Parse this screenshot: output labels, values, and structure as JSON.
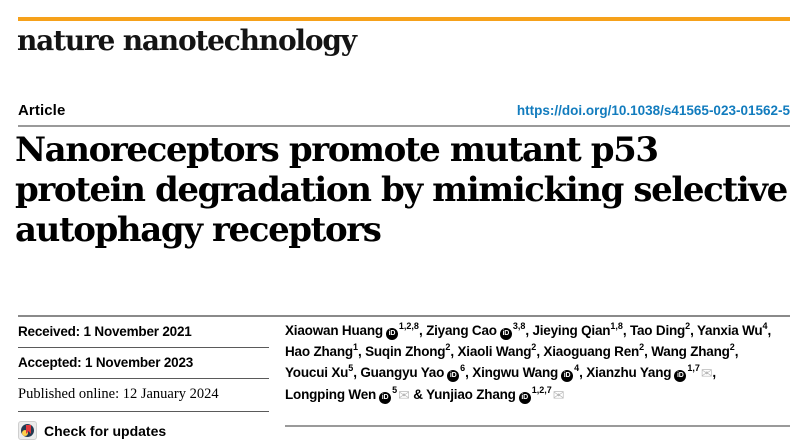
{
  "journal": {
    "name": "nature nanotechnology",
    "accent_color": "#F6A11A"
  },
  "article": {
    "label": "Article",
    "doi_url": "https://doi.org/10.1038/s41565-023-01562-5",
    "title_lines": [
      "Nanoreceptors promote mutant p53",
      "protein degradation by mimicking selective",
      "autophagy receptors"
    ]
  },
  "dates": {
    "received": "Received: 1 November 2021",
    "accepted": "Accepted: 1 November 2023",
    "published": "Published online: 12 January 2024"
  },
  "check_updates": {
    "label": "Check for updates",
    "icon": "crossmark-icon"
  },
  "colors": {
    "link_blue": "#127CBE",
    "orcid_black": "#000000",
    "envelope_gray": "#b9b9b9"
  },
  "icons": {
    "orcid_glyph": "iD",
    "envelope_glyph": "✉"
  },
  "authors": {
    "lines": [
      [
        {
          "name": "Xiaowan Huang",
          "orcid": true,
          "sup": "1,2,8",
          "envelope": false,
          "sep": ", "
        },
        {
          "name": "Ziyang Cao",
          "orcid": true,
          "sup": "3,8",
          "envelope": false,
          "sep": ", "
        },
        {
          "name": "Jieying Qian",
          "orcid": false,
          "sup": "1,8",
          "envelope": false,
          "sep": ", "
        },
        {
          "name": "Tao Ding",
          "orcid": false,
          "sup": "2",
          "envelope": false,
          "sep": ", "
        },
        {
          "name": "Yanxia Wu",
          "orcid": false,
          "sup": "4",
          "envelope": false,
          "sep": ","
        }
      ],
      [
        {
          "name": "Hao Zhang",
          "orcid": false,
          "sup": "1",
          "envelope": false,
          "sep": ", "
        },
        {
          "name": "Suqin Zhong",
          "orcid": false,
          "sup": "2",
          "envelope": false,
          "sep": ", "
        },
        {
          "name": "Xiaoli Wang",
          "orcid": false,
          "sup": "2",
          "envelope": false,
          "sep": ", "
        },
        {
          "name": "Xiaoguang Ren",
          "orcid": false,
          "sup": "2",
          "envelope": false,
          "sep": ", "
        },
        {
          "name": "Wang Zhang",
          "orcid": false,
          "sup": "2",
          "envelope": false,
          "sep": ","
        }
      ],
      [
        {
          "name": "Youcui Xu",
          "orcid": false,
          "sup": "5",
          "envelope": false,
          "sep": ", "
        },
        {
          "name": "Guangyu Yao",
          "orcid": true,
          "sup": "6",
          "envelope": false,
          "sep": ", "
        },
        {
          "name": "Xingwu Wang",
          "orcid": true,
          "sup": "4",
          "envelope": false,
          "sep": ", "
        },
        {
          "name": "Xianzhu Yang",
          "orcid": true,
          "sup": "1,7",
          "envelope": true,
          "sep": ","
        }
      ],
      [
        {
          "name": "Longping Wen",
          "orcid": true,
          "sup": "5",
          "envelope": true,
          "sep": " & "
        },
        {
          "name": "Yunjiao Zhang",
          "orcid": true,
          "sup": "1,2,7",
          "envelope": true,
          "sep": ""
        }
      ]
    ]
  }
}
